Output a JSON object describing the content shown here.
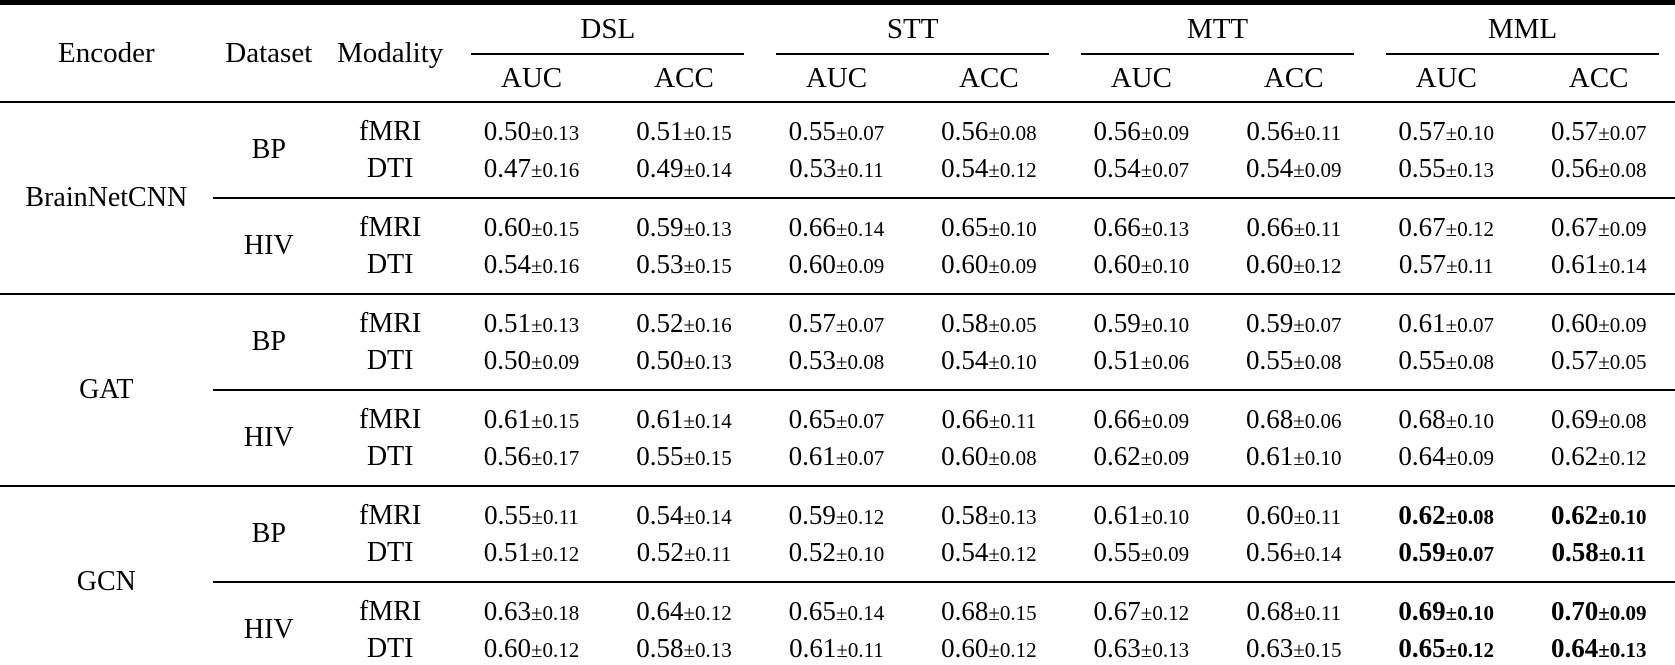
{
  "colors": {
    "text": "#000000",
    "background": "#ffffff",
    "rule": "#000000"
  },
  "table": {
    "columns": {
      "encoder": "Encoder",
      "dataset": "Dataset",
      "modality": "Modality",
      "auc": "AUC",
      "acc": "ACC"
    },
    "groups": [
      "DSL",
      "STT",
      "MTT",
      "MML"
    ],
    "encoders": [
      {
        "name": "BrainNetCNN",
        "datasets": [
          {
            "name": "BP",
            "rows": [
              {
                "modality": "fMRI",
                "bold": [],
                "values": [
                  "0.50±0.13",
                  "0.51±0.15",
                  "0.55±0.07",
                  "0.56±0.08",
                  "0.56±0.09",
                  "0.56±0.11",
                  "0.57±0.10",
                  "0.57±0.07"
                ]
              },
              {
                "modality": "DTI",
                "bold": [],
                "values": [
                  "0.47±0.16",
                  "0.49±0.14",
                  "0.53±0.11",
                  "0.54±0.12",
                  "0.54±0.07",
                  "0.54±0.09",
                  "0.55±0.13",
                  "0.56±0.08"
                ]
              }
            ]
          },
          {
            "name": "HIV",
            "rows": [
              {
                "modality": "fMRI",
                "bold": [],
                "values": [
                  "0.60±0.15",
                  "0.59±0.13",
                  "0.66±0.14",
                  "0.65±0.10",
                  "0.66±0.13",
                  "0.66±0.11",
                  "0.67±0.12",
                  "0.67±0.09"
                ]
              },
              {
                "modality": "DTI",
                "bold": [],
                "values": [
                  "0.54±0.16",
                  "0.53±0.15",
                  "0.60±0.09",
                  "0.60±0.09",
                  "0.60±0.10",
                  "0.60±0.12",
                  "0.57±0.11",
                  "0.61±0.14"
                ]
              }
            ]
          }
        ]
      },
      {
        "name": "GAT",
        "datasets": [
          {
            "name": "BP",
            "rows": [
              {
                "modality": "fMRI",
                "bold": [],
                "values": [
                  "0.51±0.13",
                  "0.52±0.16",
                  "0.57±0.07",
                  "0.58±0.05",
                  "0.59±0.10",
                  "0.59±0.07",
                  "0.61±0.07",
                  "0.60±0.09"
                ]
              },
              {
                "modality": "DTI",
                "bold": [],
                "values": [
                  "0.50±0.09",
                  "0.50±0.13",
                  "0.53±0.08",
                  "0.54±0.10",
                  "0.51±0.06",
                  "0.55±0.08",
                  "0.55±0.08",
                  "0.57±0.05"
                ]
              }
            ]
          },
          {
            "name": "HIV",
            "rows": [
              {
                "modality": "fMRI",
                "bold": [],
                "values": [
                  "0.61±0.15",
                  "0.61±0.14",
                  "0.65±0.07",
                  "0.66±0.11",
                  "0.66±0.09",
                  "0.68±0.06",
                  "0.68±0.10",
                  "0.69±0.08"
                ]
              },
              {
                "modality": "DTI",
                "bold": [],
                "values": [
                  "0.56±0.17",
                  "0.55±0.15",
                  "0.61±0.07",
                  "0.60±0.08",
                  "0.62±0.09",
                  "0.61±0.10",
                  "0.64±0.09",
                  "0.62±0.12"
                ]
              }
            ]
          }
        ]
      },
      {
        "name": "GCN",
        "datasets": [
          {
            "name": "BP",
            "rows": [
              {
                "modality": "fMRI",
                "bold": [
                  6,
                  7
                ],
                "values": [
                  "0.55±0.11",
                  "0.54±0.14",
                  "0.59±0.12",
                  "0.58±0.13",
                  "0.61±0.10",
                  "0.60±0.11",
                  "0.62±0.08",
                  "0.62±0.10"
                ]
              },
              {
                "modality": "DTI",
                "bold": [
                  6,
                  7
                ],
                "values": [
                  "0.51±0.12",
                  "0.52±0.11",
                  "0.52±0.10",
                  "0.54±0.12",
                  "0.55±0.09",
                  "0.56±0.14",
                  "0.59±0.07",
                  "0.58±0.11"
                ]
              }
            ]
          },
          {
            "name": "HIV",
            "rows": [
              {
                "modality": "fMRI",
                "bold": [
                  6,
                  7
                ],
                "values": [
                  "0.63±0.18",
                  "0.64±0.12",
                  "0.65±0.14",
                  "0.68±0.15",
                  "0.67±0.12",
                  "0.68±0.11",
                  "0.69±0.10",
                  "0.70±0.09"
                ]
              },
              {
                "modality": "DTI",
                "bold": [
                  6,
                  7
                ],
                "values": [
                  "0.60±0.12",
                  "0.58±0.13",
                  "0.61±0.11",
                  "0.60±0.12",
                  "0.63±0.13",
                  "0.63±0.15",
                  "0.65±0.12",
                  "0.64±0.13"
                ]
              }
            ]
          }
        ]
      }
    ]
  }
}
